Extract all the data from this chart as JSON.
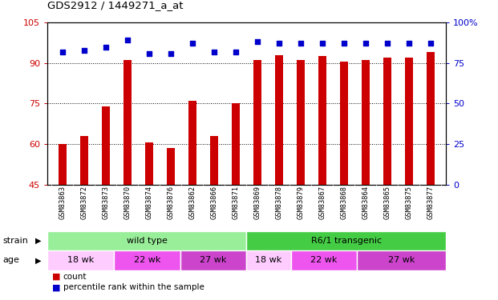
{
  "title": "GDS2912 / 1449271_a_at",
  "samples": [
    "GSM83863",
    "GSM83872",
    "GSM83873",
    "GSM83870",
    "GSM83874",
    "GSM83876",
    "GSM83862",
    "GSM83866",
    "GSM83871",
    "GSM83869",
    "GSM83878",
    "GSM83879",
    "GSM83867",
    "GSM83868",
    "GSM83864",
    "GSM83865",
    "GSM83875",
    "GSM83877"
  ],
  "counts": [
    60,
    63,
    74,
    91,
    60.5,
    58.5,
    76,
    63,
    75,
    91,
    93,
    91,
    92.5,
    90.5,
    91,
    92,
    92,
    94
  ],
  "percentiles_right": [
    82,
    83,
    85,
    89,
    81,
    81,
    87,
    82,
    82,
    88,
    87,
    87,
    87,
    87,
    87,
    87,
    87,
    87
  ],
  "ylim_left": [
    45,
    105
  ],
  "ylim_right": [
    0,
    100
  ],
  "yticks_left": [
    45,
    60,
    75,
    90,
    105
  ],
  "yticks_right": [
    0,
    25,
    50,
    75,
    100
  ],
  "bar_color": "#cc0000",
  "dot_color": "#0000cc",
  "strain_groups": [
    {
      "label": "wild type",
      "start": 0,
      "end": 9,
      "color": "#99ee99"
    },
    {
      "label": "R6/1 transgenic",
      "start": 9,
      "end": 18,
      "color": "#44cc44"
    }
  ],
  "age_groups": [
    {
      "label": "18 wk",
      "start": 0,
      "end": 3,
      "color": "#ffccff"
    },
    {
      "label": "22 wk",
      "start": 3,
      "end": 6,
      "color": "#ee55ee"
    },
    {
      "label": "27 wk",
      "start": 6,
      "end": 9,
      "color": "#cc44cc"
    },
    {
      "label": "18 wk",
      "start": 9,
      "end": 11,
      "color": "#ffccff"
    },
    {
      "label": "22 wk",
      "start": 11,
      "end": 14,
      "color": "#ee55ee"
    },
    {
      "label": "27 wk",
      "start": 14,
      "end": 18,
      "color": "#cc44cc"
    }
  ],
  "tick_color_left": "#cc0000",
  "tick_color_right": "#0000cc",
  "bar_width": 0.35,
  "dot_size": 20
}
